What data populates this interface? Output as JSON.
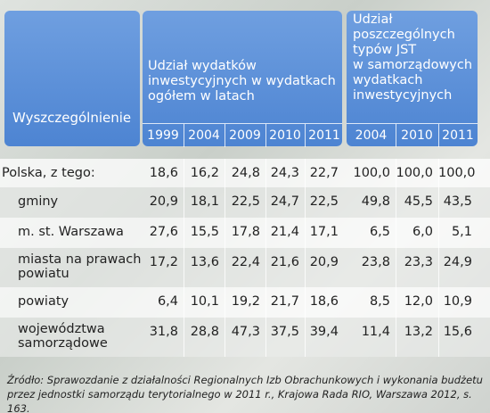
{
  "table": {
    "label_header": "Wyszczególnienie",
    "group1": "Udział wydatków\ninwestycyjnych w wydatkach\nogółem w latach",
    "group2": "Udział\nposzczególnych\ntypów JST\nw samorządowych\nwydatkach\ninwestycyjnych",
    "years1": [
      "1999",
      "2004",
      "2009",
      "2010",
      "2011"
    ],
    "years2": [
      "2004",
      "2010",
      "2011"
    ],
    "rows": [
      [
        "Polska, z tego:",
        "18,6",
        "16,2",
        "24,8",
        "24,3",
        "22,7",
        "100,0",
        "100,0",
        "100,0"
      ],
      [
        "gminy",
        "20,9",
        "18,1",
        "22,5",
        "24,7",
        "22,5",
        "49,8",
        "45,5",
        "43,5"
      ],
      [
        "m. st. Warszawa",
        "27,6",
        "15,5",
        "17,8",
        "21,4",
        "17,1",
        "6,5",
        "6,0",
        "5,1"
      ],
      [
        "miasta na prawach\npowiatu",
        "17,2",
        "13,6",
        "22,4",
        "21,6",
        "20,9",
        "23,8",
        "23,3",
        "24,9"
      ],
      [
        "powiaty",
        "6,4",
        "10,1",
        "19,2",
        "21,7",
        "18,6",
        "8,5",
        "12,0",
        "10,9"
      ],
      [
        "województwa\nsamorządowe",
        "31,8",
        "28,8",
        "47,3",
        "37,5",
        "39,4",
        "11,4",
        "13,2",
        "15,6"
      ]
    ]
  },
  "source": "Źródło: Sprawozdanie z działalności Regionalnych Izb Obrachunkowych i wykonania budżetu przez jednostki samorządu terytorialnego w 2011 r., Krajowa Rada RIO, Warszawa 2012, s. 163."
}
